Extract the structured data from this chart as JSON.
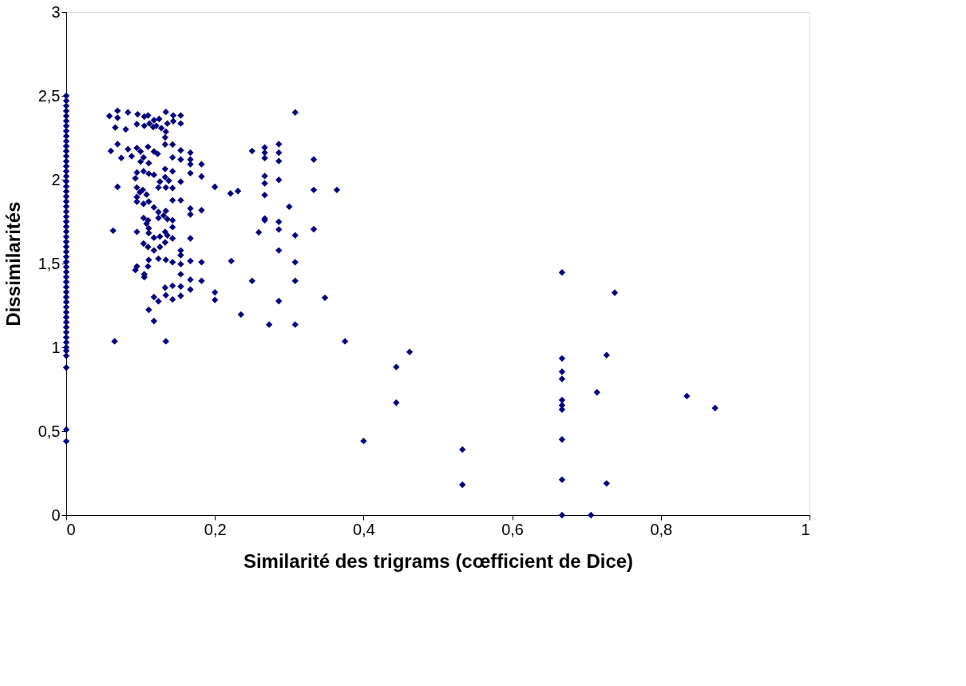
{
  "chart_data": {
    "type": "scatter",
    "xlabel": "Similarité des trigrams (cœfficient de Dice)",
    "ylabel": "Dissimilarités",
    "xlim": [
      0,
      1
    ],
    "xticks": [
      0,
      {
        "value": 0.2,
        "label": "0,2"
      },
      {
        "value": 0.4,
        "label": "0,4"
      },
      {
        "value": 0.6,
        "label": "0,6"
      },
      {
        "value": 0.8,
        "label": "0,8"
      },
      1
    ],
    "ylim": [
      0,
      3
    ],
    "yticks": [
      0,
      {
        "value": 0.5,
        "label": "0,5"
      },
      1,
      {
        "value": 1.5,
        "label": "1,5"
      },
      2,
      {
        "value": 2.5,
        "label": "2,5"
      },
      3
    ],
    "grid": false,
    "legend": false,
    "marker": "diamond",
    "series": [
      {
        "color": "#000080",
        "x": [
          0,
          0,
          0,
          0,
          0,
          0,
          0,
          0,
          0,
          0,
          0,
          0,
          0,
          0,
          0,
          0,
          0,
          0,
          0,
          0,
          0,
          0,
          0,
          0,
          0,
          0,
          0,
          0,
          0,
          0,
          0,
          0,
          0,
          0,
          0,
          0,
          0,
          0,
          0,
          0,
          0,
          0,
          0,
          0,
          0,
          0,
          0,
          0,
          0,
          0,
          0,
          0,
          0,
          0,
          0,
          0,
          0.058,
          0.069,
          0.069,
          0.083,
          0.096,
          0.105,
          0.11,
          0.112,
          0.118,
          0.121,
          0.125,
          0.128,
          0.134,
          0.136,
          0.144,
          0.144,
          0.154,
          0.154,
          0.066,
          0.08,
          0.095,
          0.105,
          0.117,
          0.134,
          0.133,
          0.133,
          0.143,
          0.069,
          0.06,
          0.083,
          0.074,
          0.088,
          0.095,
          0.1,
          0.104,
          0.11,
          0.111,
          0.118,
          0.123,
          0.1,
          0.143,
          0.154,
          0.154,
          0.167,
          0.167,
          0.167,
          0.182,
          0.167,
          0.182,
          0.095,
          0.093,
          0.104,
          0.111,
          0.118,
          0.133,
          0.143,
          0.133,
          0.138,
          0.154,
          0.126,
          0.124,
          0.134,
          0.143,
          0.095,
          0.099,
          0.095,
          0.103,
          0.108,
          0.104,
          0.095,
          0.111,
          0.069,
          0.143,
          0.154,
          0.118,
          0.124,
          0.134,
          0.124,
          0.131,
          0.167,
          0.167,
          0.182,
          0.104,
          0.11,
          0.108,
          0.111,
          0.111,
          0.136,
          0.143,
          0.143,
          0.143,
          0.063,
          0.095,
          0.133,
          0.136,
          0.118,
          0.126,
          0.167,
          0.104,
          0.11,
          0.118,
          0.126,
          0.133,
          0.154,
          0.154,
          0.111,
          0.124,
          0.134,
          0.143,
          0.154,
          0.167,
          0.182,
          0.093,
          0.095,
          0.11,
          0.105,
          0.105,
          0.154,
          0.167,
          0.182,
          0.133,
          0.143,
          0.154,
          0.167,
          0.118,
          0.124,
          0.134,
          0.143,
          0.154,
          0.111,
          0.118,
          0.065,
          0.134,
          0.308,
          0.25,
          0.267,
          0.267,
          0.267,
          0.286,
          0.286,
          0.286,
          0.333,
          0.267,
          0.267,
          0.286,
          0.2,
          0.221,
          0.231,
          0.333,
          0.364,
          0.267,
          0.3,
          0.267,
          0.267,
          0.286,
          0.286,
          0.333,
          0.259,
          0.308,
          0.286,
          0.222,
          0.308,
          0.25,
          0.308,
          0.2,
          0.2,
          0.348,
          0.286,
          0.235,
          0.273,
          0.308,
          0.375,
          0.462,
          0.444,
          0.444,
          0.4,
          0.533,
          0.533,
          0.667,
          0.738,
          0.667,
          0.667,
          0.667,
          0.667,
          0.667,
          0.667,
          0.667,
          0.667,
          0.667,
          0.706,
          0.727,
          0.714,
          0.727,
          0.835,
          0.873
        ],
        "values": [
          0.44,
          0.51,
          0.88,
          0.95,
          0.98,
          1.0,
          1.03,
          1.06,
          1.09,
          1.12,
          1.15,
          1.18,
          1.21,
          1.24,
          1.27,
          1.3,
          1.33,
          1.36,
          1.39,
          1.42,
          1.45,
          1.48,
          1.51,
          1.54,
          1.57,
          1.6,
          1.63,
          1.66,
          1.69,
          1.72,
          1.75,
          1.78,
          1.81,
          1.84,
          1.87,
          1.9,
          1.93,
          1.96,
          1.99,
          2.02,
          2.05,
          2.08,
          2.11,
          2.14,
          2.17,
          2.2,
          2.23,
          2.26,
          2.29,
          2.32,
          2.35,
          2.38,
          2.41,
          2.44,
          2.47,
          2.5,
          2.38,
          2.411,
          2.369,
          2.401,
          2.39,
          2.376,
          2.383,
          2.335,
          2.355,
          2.321,
          2.362,
          2.307,
          2.404,
          2.335,
          2.383,
          2.349,
          2.383,
          2.335,
          2.311,
          2.3,
          2.331,
          2.321,
          2.314,
          2.286,
          2.252,
          2.21,
          2.21,
          2.212,
          2.171,
          2.182,
          2.13,
          2.14,
          2.189,
          2.168,
          2.133,
          2.196,
          2.099,
          2.168,
          2.154,
          2.108,
          2.133,
          2.175,
          2.12,
          2.161,
          2.12,
          2.092,
          2.092,
          2.039,
          2.019,
          2.043,
          2.008,
          2.05,
          2.036,
          2.029,
          2.064,
          2.05,
          2.015,
          1.994,
          1.988,
          1.988,
          1.953,
          1.953,
          1.95,
          1.953,
          1.925,
          1.897,
          1.939,
          1.911,
          1.856,
          1.869,
          1.869,
          1.957,
          1.877,
          1.877,
          1.835,
          1.807,
          1.814,
          1.772,
          1.786,
          1.828,
          1.793,
          1.818,
          1.772,
          1.758,
          1.738,
          1.71,
          1.682,
          1.765,
          1.758,
          1.717,
          1.65,
          1.696,
          1.689,
          1.689,
          1.668,
          1.654,
          1.661,
          1.65,
          1.619,
          1.599,
          1.578,
          1.599,
          1.626,
          1.578,
          1.55,
          1.522,
          1.529,
          1.522,
          1.508,
          1.497,
          1.515,
          1.508,
          1.461,
          1.483,
          1.483,
          1.436,
          1.419,
          1.436,
          1.404,
          1.397,
          1.356,
          1.367,
          1.363,
          1.345,
          1.3,
          1.275,
          1.311,
          1.286,
          1.307,
          1.224,
          1.157,
          1.036,
          1.036,
          2.401,
          2.171,
          2.192,
          2.161,
          2.129,
          2.212,
          2.161,
          2.111,
          2.12,
          2.022,
          1.978,
          1.999,
          1.957,
          1.918,
          1.932,
          1.939,
          1.939,
          1.908,
          1.839,
          1.768,
          1.758,
          1.749,
          1.703,
          1.705,
          1.686,
          1.668,
          1.578,
          1.515,
          1.508,
          1.397,
          1.397,
          1.328,
          1.283,
          1.296,
          1.276,
          1.196,
          1.136,
          1.136,
          1.036,
          0.973,
          0.883,
          0.67,
          0.442,
          0.391,
          0.181,
          1.447,
          1.326,
          0.934,
          0.855,
          0.812,
          0.686,
          0.655,
          0.63,
          0.451,
          0.211,
          0,
          0,
          0.954,
          0.732,
          0.189,
          0.71,
          0.638
        ]
      }
    ]
  }
}
